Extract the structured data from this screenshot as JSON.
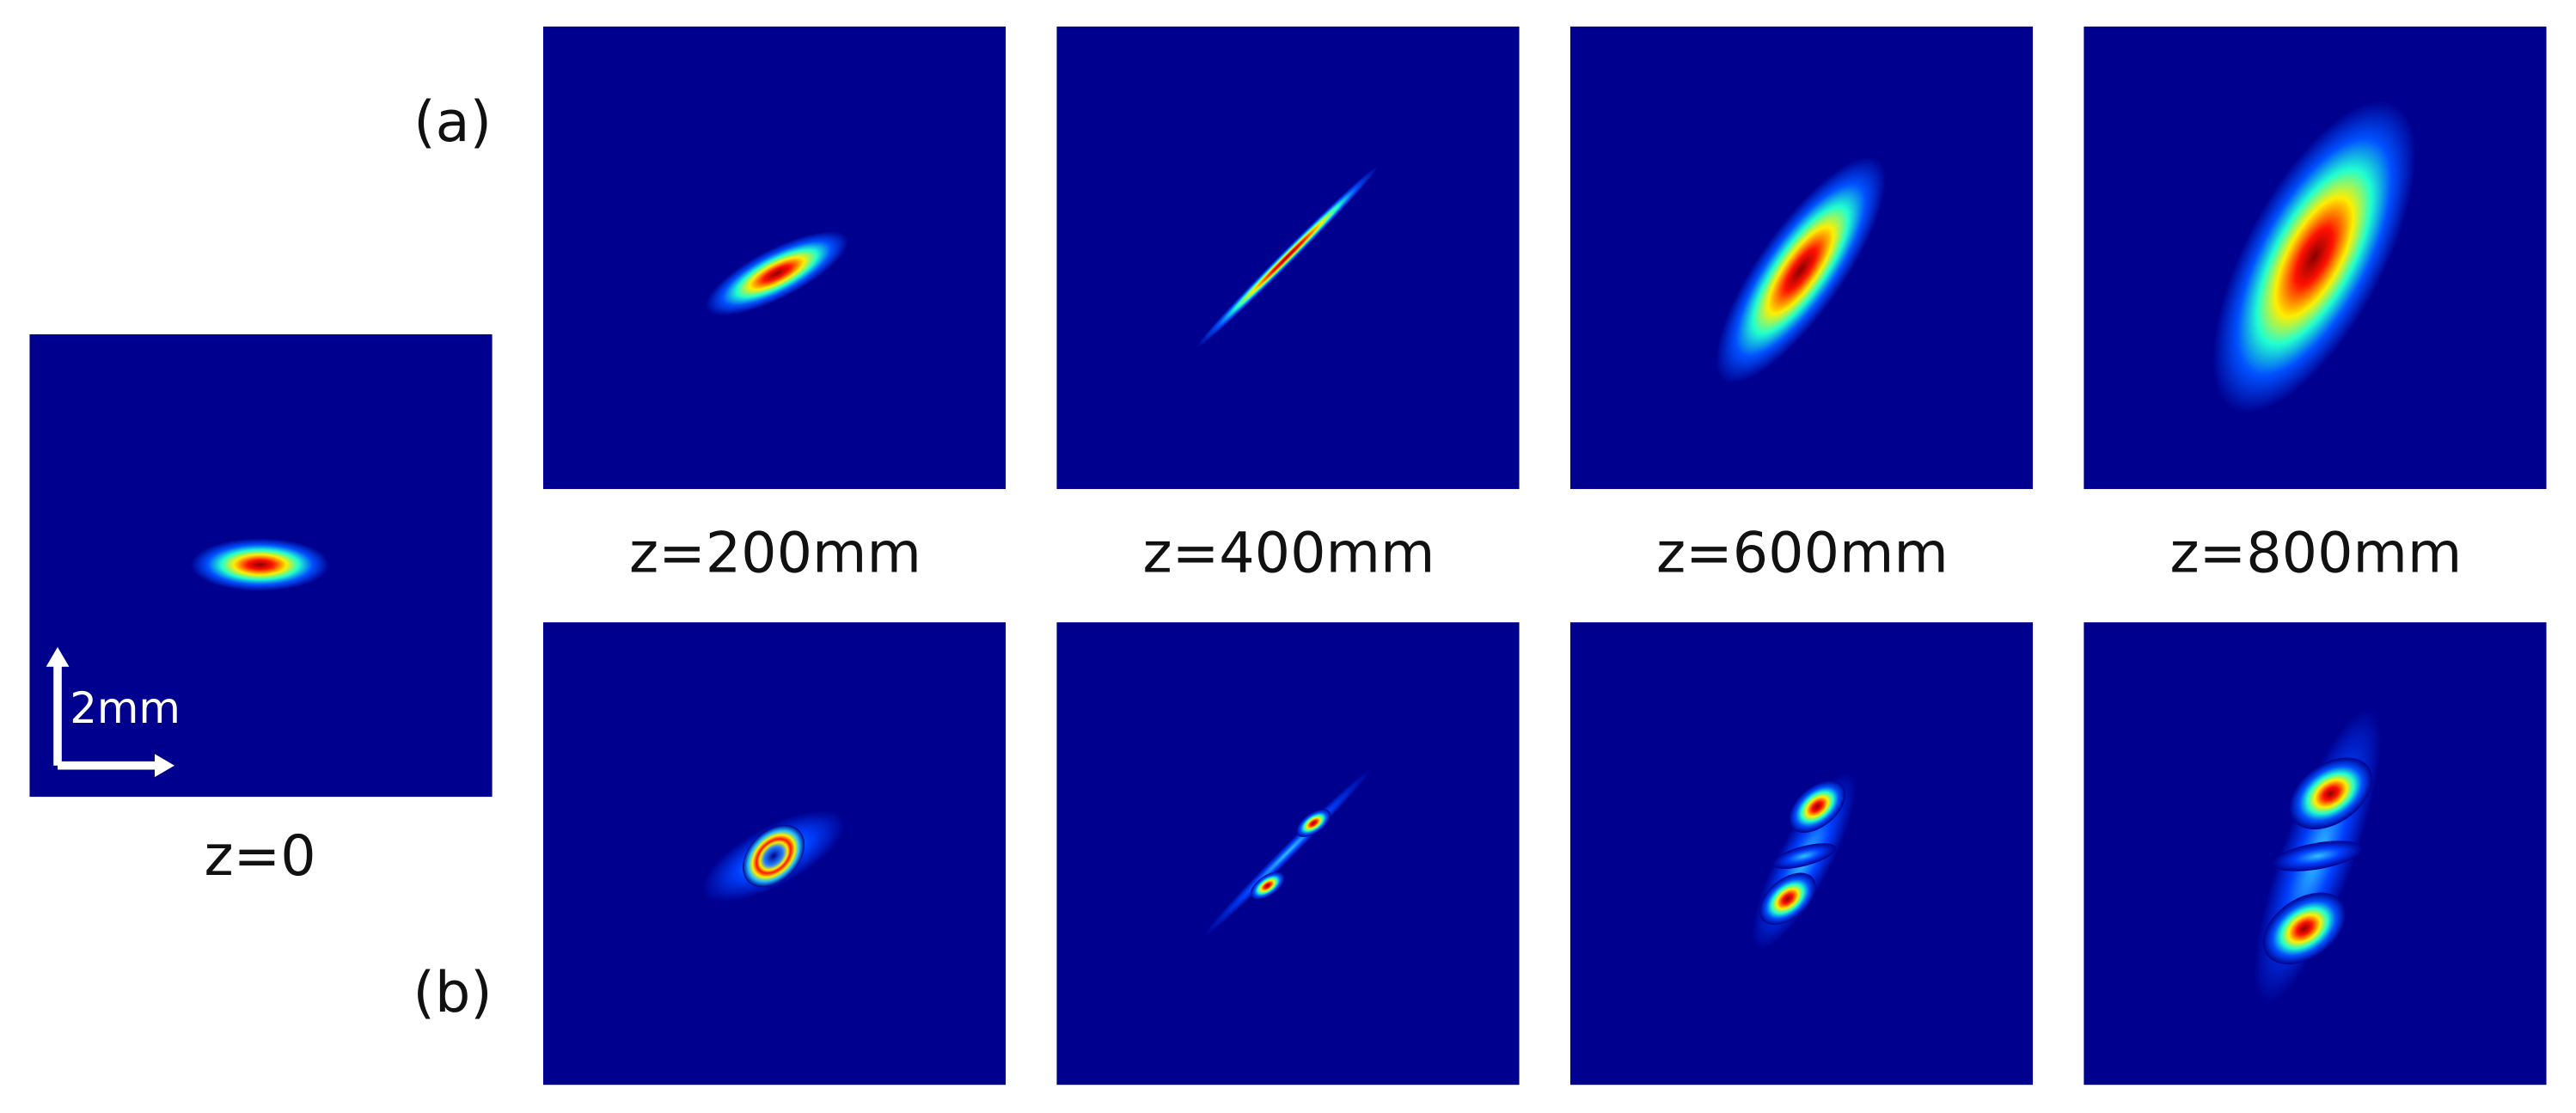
{
  "row_labels": [
    "(a)",
    "(b)"
  ],
  "column_labels": [
    "z=200mm",
    "z=400mm",
    "z=600mm",
    "z=800mm"
  ],
  "reference": {
    "label": "z=0",
    "scale_bar": "2mm"
  }
}
